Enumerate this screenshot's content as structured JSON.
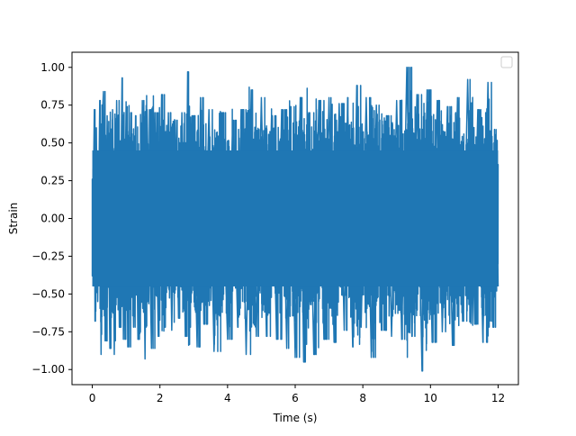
{
  "chart_data": {
    "type": "line",
    "title": "",
    "xlabel": "Time (s)",
    "ylabel": "Strain",
    "xlim": [
      -0.6,
      12.6
    ],
    "ylim": [
      -1.1,
      1.1
    ],
    "x_ticks": [
      0,
      2,
      4,
      6,
      8,
      10,
      12
    ],
    "x_tick_labels": [
      "0",
      "2",
      "4",
      "6",
      "8",
      "10",
      "12"
    ],
    "y_ticks": [
      -1.0,
      -0.75,
      -0.5,
      -0.25,
      0.0,
      0.25,
      0.5,
      0.75,
      1.0
    ],
    "y_tick_labels": [
      "−1.00",
      "−0.75",
      "−0.50",
      "−0.25",
      "0.00",
      "0.25",
      "0.50",
      "0.75",
      "1.00"
    ],
    "grid": false,
    "legend": {
      "placement": "top-right",
      "entries": []
    },
    "series": [
      {
        "color": "#1f77b4",
        "x_range": [
          0,
          12
        ],
        "approx_amplitude_range": [
          -1.01,
          1.0
        ],
        "samples": [
          [
            0.0,
            0.26
          ],
          [
            0.0,
            -0.38
          ],
          [
            0.06,
            0.72
          ],
          [
            0.08,
            -0.68
          ],
          [
            0.12,
            0.6
          ],
          [
            0.16,
            -0.55
          ],
          [
            0.22,
            0.78
          ],
          [
            0.26,
            -0.9
          ],
          [
            0.3,
            0.68
          ],
          [
            0.33,
            0.84
          ],
          [
            0.38,
            -0.81
          ],
          [
            0.44,
            0.68
          ],
          [
            0.52,
            -0.86
          ],
          [
            0.6,
            0.72
          ],
          [
            0.65,
            -0.9
          ],
          [
            0.72,
            0.78
          ],
          [
            0.8,
            -0.72
          ],
          [
            0.88,
            0.93
          ],
          [
            0.92,
            -0.8
          ],
          [
            1.0,
            0.74
          ],
          [
            1.05,
            -0.85
          ],
          [
            1.14,
            0.7
          ],
          [
            1.22,
            -0.72
          ],
          [
            1.28,
            0.68
          ],
          [
            1.35,
            -0.8
          ],
          [
            1.42,
            -0.75
          ],
          [
            1.48,
            0.78
          ],
          [
            1.56,
            -0.93
          ],
          [
            1.62,
            0.72
          ],
          [
            1.75,
            -0.86
          ],
          [
            1.85,
            0.7
          ],
          [
            1.95,
            -0.78
          ],
          [
            2.05,
            0.82
          ],
          [
            2.15,
            -0.72
          ],
          [
            2.25,
            0.7
          ],
          [
            2.35,
            -0.74
          ],
          [
            2.45,
            0.65
          ],
          [
            2.55,
            -0.66
          ],
          [
            2.65,
            0.7
          ],
          [
            2.75,
            -0.78
          ],
          [
            2.82,
            0.97
          ],
          [
            2.88,
            -0.72
          ],
          [
            2.95,
            0.68
          ],
          [
            3.1,
            -0.85
          ],
          [
            3.2,
            0.8
          ],
          [
            3.3,
            -0.7
          ],
          [
            3.45,
            0.72
          ],
          [
            3.6,
            -0.88
          ],
          [
            3.8,
            0.7
          ],
          [
            4.0,
            -0.8
          ],
          [
            4.15,
            0.65
          ],
          [
            4.3,
            -0.72
          ],
          [
            4.4,
            0.72
          ],
          [
            4.55,
            -0.9
          ],
          [
            4.7,
            0.85
          ],
          [
            4.85,
            -0.78
          ],
          [
            5.0,
            0.8
          ],
          [
            5.15,
            -0.78
          ],
          [
            5.3,
            0.68
          ],
          [
            5.45,
            -0.8
          ],
          [
            5.6,
            0.72
          ],
          [
            5.75,
            -0.86
          ],
          [
            5.85,
            0.74
          ],
          [
            6.0,
            -0.92
          ],
          [
            6.15,
            0.8
          ],
          [
            6.25,
            -0.95
          ],
          [
            6.4,
            0.7
          ],
          [
            6.55,
            -0.9
          ],
          [
            6.7,
            0.78
          ],
          [
            6.85,
            -0.8
          ],
          [
            7.0,
            0.8
          ],
          [
            7.15,
            -0.82
          ],
          [
            7.3,
            0.76
          ],
          [
            7.45,
            -0.74
          ],
          [
            7.55,
            0.8
          ],
          [
            7.7,
            -0.85
          ],
          [
            7.82,
            0.88
          ],
          [
            7.95,
            -0.72
          ],
          [
            8.1,
            0.8
          ],
          [
            8.25,
            -0.92
          ],
          [
            8.4,
            0.75
          ],
          [
            8.55,
            -0.74
          ],
          [
            8.7,
            0.68
          ],
          [
            8.85,
            -0.78
          ],
          [
            9.0,
            0.78
          ],
          [
            9.15,
            -0.8
          ],
          [
            9.3,
            1.0
          ],
          [
            9.45,
            -0.78
          ],
          [
            9.6,
            0.82
          ],
          [
            9.75,
            -1.01
          ],
          [
            9.9,
            0.85
          ],
          [
            10.05,
            -0.82
          ],
          [
            10.2,
            0.78
          ],
          [
            10.35,
            -0.75
          ],
          [
            10.5,
            0.74
          ],
          [
            10.65,
            -0.84
          ],
          [
            10.8,
            0.8
          ],
          [
            10.95,
            -0.68
          ],
          [
            11.1,
            0.92
          ],
          [
            11.25,
            -0.7
          ],
          [
            11.4,
            0.72
          ],
          [
            11.55,
            -0.82
          ],
          [
            11.7,
            0.9
          ],
          [
            11.85,
            -0.72
          ],
          [
            11.95,
            0.52
          ],
          [
            12.0,
            -0.45
          ]
        ]
      }
    ]
  }
}
